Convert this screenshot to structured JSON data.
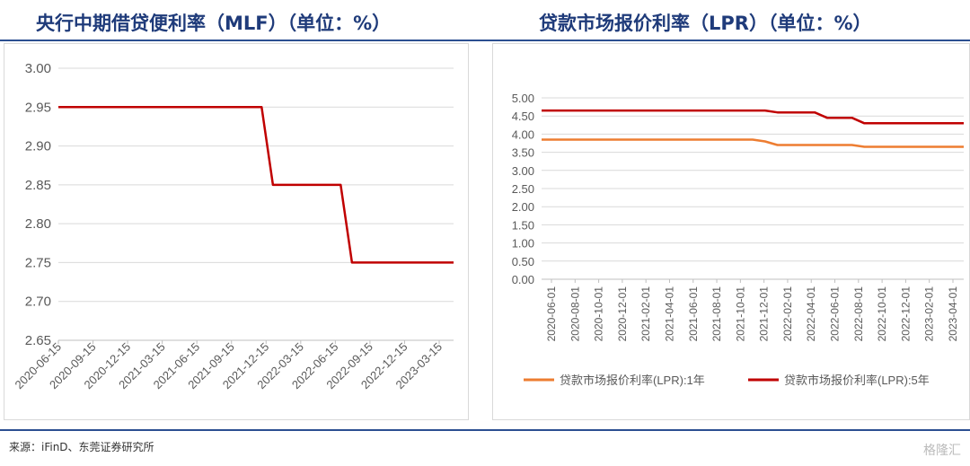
{
  "titles": {
    "left": "央行中期借贷便利率（MLF）（单位：%）",
    "right": "贷款市场报价利率（LPR）（单位：%）"
  },
  "source": "来源：iFinD、东莞证券研究所",
  "watermark": "格隆汇",
  "colors": {
    "title": "#1f3b7a",
    "rule": "#2b4f91",
    "mlf": "#c00000",
    "lpr1": "#ed7d31",
    "lpr5": "#c00000"
  },
  "chart_data": [
    {
      "type": "line",
      "title": "央行中期借贷便利率（MLF）（单位：%）",
      "ylim": [
        2.65,
        3.0
      ],
      "yticks": [
        "3.00",
        "2.95",
        "2.90",
        "2.85",
        "2.80",
        "2.75",
        "2.70",
        "2.65"
      ],
      "categories": [
        "2020-06-15",
        "2020-09-15",
        "2020-12-15",
        "2021-03-15",
        "2021-06-15",
        "2021-09-15",
        "2021-12-15",
        "2022-03-15",
        "2022-06-15",
        "2022-09-15",
        "2022-12-15",
        "2023-03-15"
      ],
      "series": [
        {
          "values": [
            [
              "2020-06",
              2.95
            ],
            [
              "2021-12",
              2.95
            ],
            [
              "2022-01",
              2.85
            ],
            [
              "2022-07",
              2.85
            ],
            [
              "2022-08",
              2.75
            ],
            [
              "2023-05",
              2.75
            ]
          ]
        }
      ],
      "grid": true,
      "legend": "none"
    },
    {
      "type": "line",
      "title": "贷款市场报价利率（LPR）（单位：%）",
      "ylim": [
        0,
        5.0
      ],
      "yticks": [
        "5.00",
        "4.50",
        "4.00",
        "3.50",
        "3.00",
        "2.50",
        "2.00",
        "1.50",
        "1.00",
        "0.50",
        "0.00"
      ],
      "categories": [
        "2020-06-01",
        "2020-08-01",
        "2020-10-01",
        "2020-12-01",
        "2021-02-01",
        "2021-04-01",
        "2021-06-01",
        "2021-08-01",
        "2021-10-01",
        "2021-12-01",
        "2022-02-01",
        "2022-04-01",
        "2022-06-01",
        "2022-08-01",
        "2022-10-01",
        "2022-12-01",
        "2023-02-01",
        "2023-04-01"
      ],
      "series": [
        {
          "name": "贷款市场报价利率(LPR):1年",
          "values": [
            [
              "2020-06",
              3.85
            ],
            [
              "2021-11",
              3.85
            ],
            [
              "2021-12",
              3.8
            ],
            [
              "2022-01",
              3.7
            ],
            [
              "2022-07",
              3.7
            ],
            [
              "2022-08",
              3.65
            ],
            [
              "2023-04",
              3.65
            ]
          ]
        },
        {
          "name": "贷款市场报价利率(LPR):5年",
          "values": [
            [
              "2020-06",
              4.65
            ],
            [
              "2021-12",
              4.65
            ],
            [
              "2022-01",
              4.6
            ],
            [
              "2022-04",
              4.6
            ],
            [
              "2022-05",
              4.45
            ],
            [
              "2022-07",
              4.45
            ],
            [
              "2022-08",
              4.3
            ],
            [
              "2023-04",
              4.3
            ]
          ]
        }
      ],
      "grid": true,
      "legend": "bottom"
    }
  ]
}
